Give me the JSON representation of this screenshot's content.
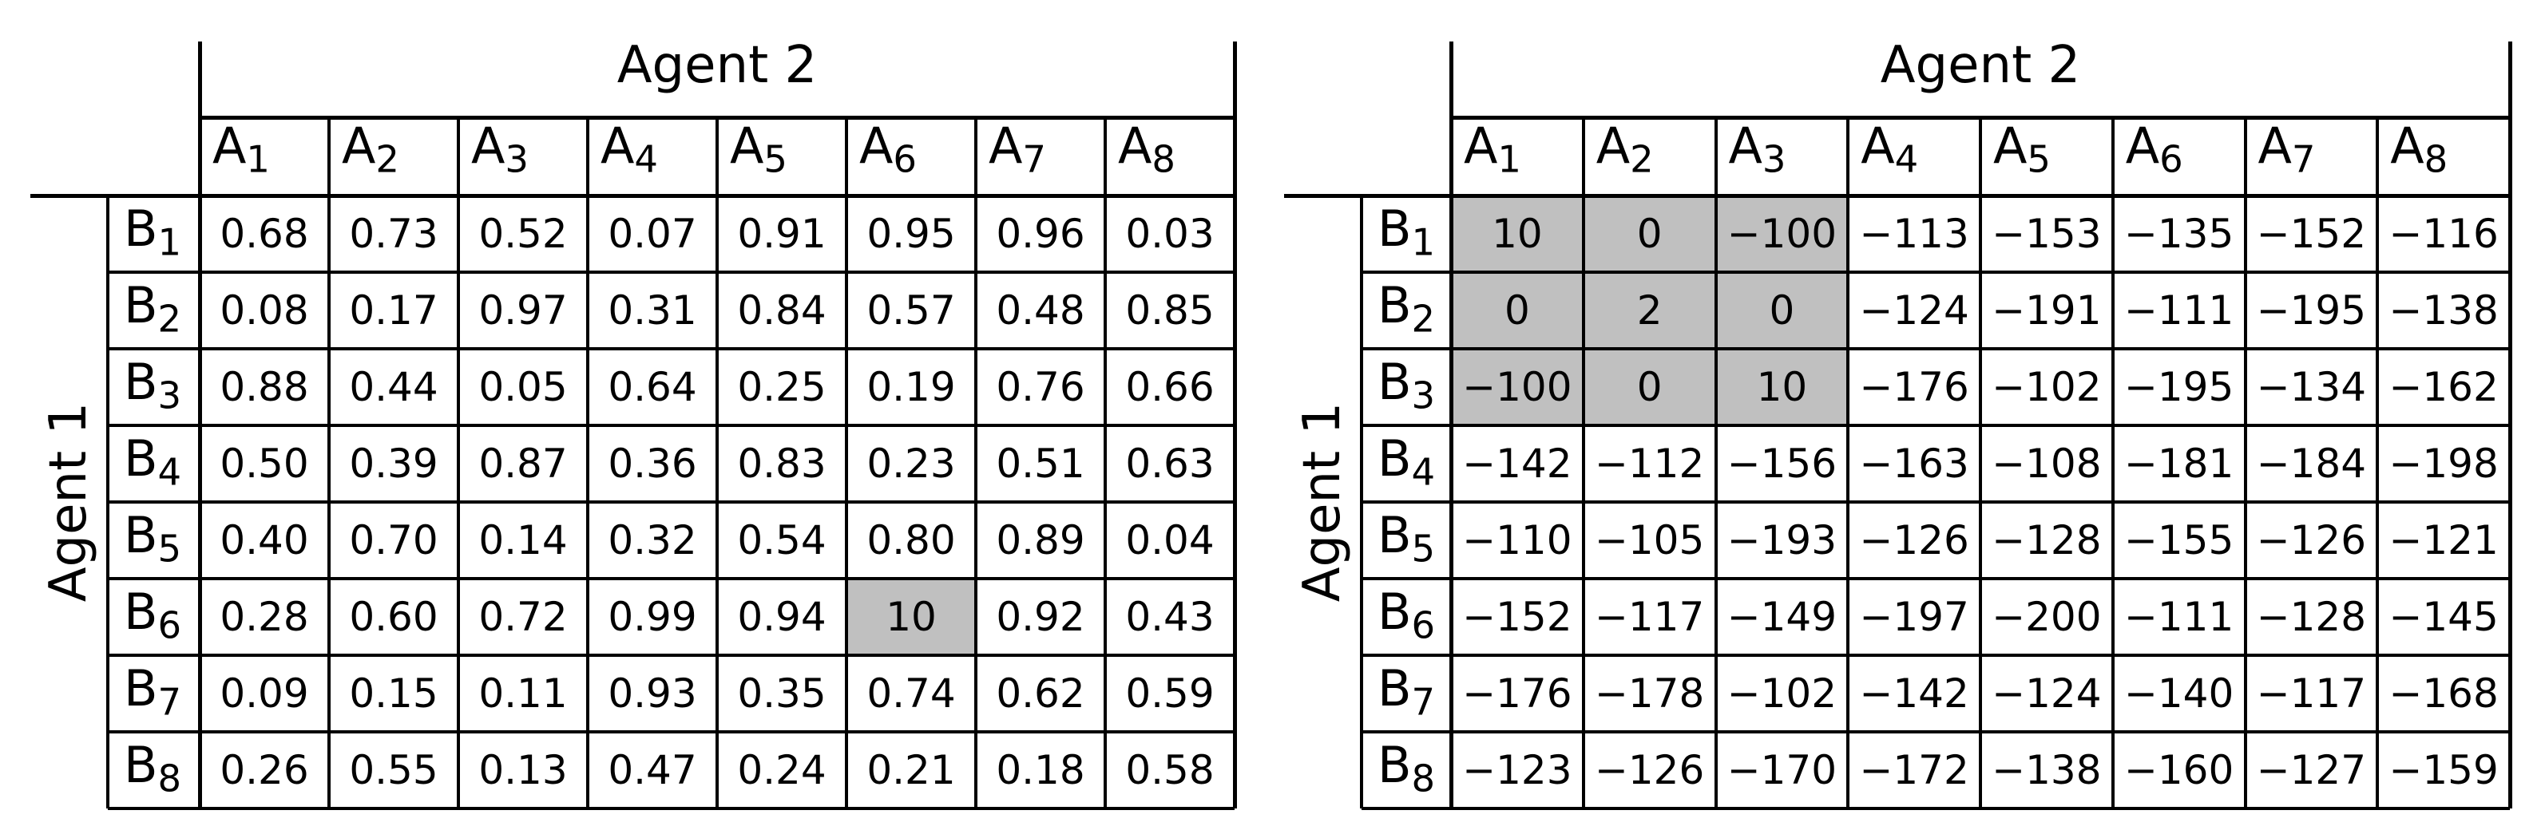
{
  "figure": {
    "description_colors": {
      "background": "#ffffff",
      "grid": "#000000",
      "text": "#000000",
      "highlight": "#c0c0c0"
    }
  },
  "chart_data": [
    {
      "type": "table",
      "title": "Agent 2",
      "row_axis_label": "Agent 1",
      "col_headers": [
        "A1",
        "A2",
        "A3",
        "A4",
        "A5",
        "A6",
        "A7",
        "A8"
      ],
      "row_headers": [
        "B1",
        "B2",
        "B3",
        "B4",
        "B5",
        "B6",
        "B7",
        "B8"
      ],
      "rows": [
        [
          "0.68",
          "0.73",
          "0.52",
          "0.07",
          "0.91",
          "0.95",
          "0.96",
          "0.03"
        ],
        [
          "0.08",
          "0.17",
          "0.97",
          "0.31",
          "0.84",
          "0.57",
          "0.48",
          "0.85"
        ],
        [
          "0.88",
          "0.44",
          "0.05",
          "0.64",
          "0.25",
          "0.19",
          "0.76",
          "0.66"
        ],
        [
          "0.50",
          "0.39",
          "0.87",
          "0.36",
          "0.83",
          "0.23",
          "0.51",
          "0.63"
        ],
        [
          "0.40",
          "0.70",
          "0.14",
          "0.32",
          "0.54",
          "0.80",
          "0.89",
          "0.04"
        ],
        [
          "0.28",
          "0.60",
          "0.72",
          "0.99",
          "0.94",
          "10",
          "0.92",
          "0.43"
        ],
        [
          "0.09",
          "0.15",
          "0.11",
          "0.93",
          "0.35",
          "0.74",
          "0.62",
          "0.59"
        ],
        [
          "0.26",
          "0.55",
          "0.13",
          "0.47",
          "0.24",
          "0.21",
          "0.18",
          "0.58"
        ]
      ],
      "highlighted_cells": [
        [
          5,
          5
        ]
      ],
      "highlight_color": "#c0c0c0",
      "grid": "on",
      "legend": "none"
    },
    {
      "type": "table",
      "title": "Agent 2",
      "row_axis_label": "Agent 1",
      "col_headers": [
        "A1",
        "A2",
        "A3",
        "A4",
        "A5",
        "A6",
        "A7",
        "A8"
      ],
      "row_headers": [
        "B1",
        "B2",
        "B3",
        "B4",
        "B5",
        "B6",
        "B7",
        "B8"
      ],
      "rows": [
        [
          "10",
          "0",
          "−100",
          "−113",
          "−153",
          "−135",
          "−152",
          "−116"
        ],
        [
          "0",
          "2",
          "0",
          "−124",
          "−191",
          "−111",
          "−195",
          "−138"
        ],
        [
          "−100",
          "0",
          "10",
          "−176",
          "−102",
          "−195",
          "−134",
          "−162"
        ],
        [
          "−142",
          "−112",
          "−156",
          "−163",
          "−108",
          "−181",
          "−184",
          "−198"
        ],
        [
          "−110",
          "−105",
          "−193",
          "−126",
          "−128",
          "−155",
          "−126",
          "−121"
        ],
        [
          "−152",
          "−117",
          "−149",
          "−197",
          "−200",
          "−111",
          "−128",
          "−145"
        ],
        [
          "−176",
          "−178",
          "−102",
          "−142",
          "−124",
          "−140",
          "−117",
          "−168"
        ],
        [
          "−123",
          "−126",
          "−170",
          "−172",
          "−138",
          "−160",
          "−127",
          "−159"
        ]
      ],
      "highlighted_cells": [
        [
          0,
          0
        ],
        [
          0,
          1
        ],
        [
          0,
          2
        ],
        [
          1,
          0
        ],
        [
          1,
          1
        ],
        [
          1,
          2
        ],
        [
          2,
          0
        ],
        [
          2,
          1
        ],
        [
          2,
          2
        ]
      ],
      "highlight_color": "#c0c0c0",
      "grid": "on",
      "legend": "none"
    }
  ]
}
